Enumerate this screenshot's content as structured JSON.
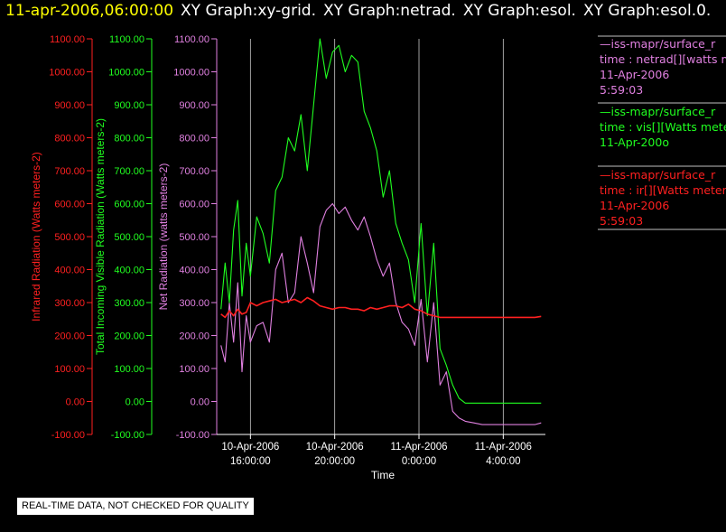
{
  "header": {
    "timestamp": "11-apr-2006,06:00:00",
    "graph_labels": [
      "XY Graph:xy-grid.",
      "XY Graph:netrad.",
      "XY Graph:esol.",
      "XY Graph:esol.0."
    ]
  },
  "disclaimer": "REAL-TIME DATA, NOT CHECKED FOR QUALITY",
  "colors": {
    "infrared": "#ff2020",
    "visible": "#20ff20",
    "net": "#e080e0",
    "grid": "#c8c8c8"
  },
  "chart_data": {
    "type": "line",
    "xlabel": "Time",
    "x_ticks": [
      {
        "hours": 16,
        "line1": "10-Apr-2006",
        "line2": "16:00:00"
      },
      {
        "hours": 20,
        "line1": "10-Apr-2006",
        "line2": "20:00:00"
      },
      {
        "hours": 24,
        "line1": "11-Apr-2006",
        "line2": "0:00:00"
      },
      {
        "hours": 28,
        "line1": "11-Apr-2006",
        "line2": "4:00:00"
      }
    ],
    "xlim_hours": [
      14.4,
      30.0
    ],
    "axes": [
      {
        "key": "infrared",
        "label": "Infrared Radiation (Watts meters-2)",
        "color": "#ff2020",
        "ylim": [
          -100,
          1100
        ],
        "ticks": [
          "1100.00",
          "1000.00",
          "900.00",
          "800.00",
          "700.00",
          "600.00",
          "500.00",
          "400.00",
          "300.00",
          "200.00",
          "100.00",
          "0.00",
          "-100.00"
        ]
      },
      {
        "key": "visible",
        "label": "Total Incoming Visible Radiation (Watts meters-2)",
        "color": "#20ff20",
        "ylim": [
          -100,
          1100
        ],
        "ticks": [
          "1100.00",
          "1000.00",
          "900.00",
          "800.00",
          "700.00",
          "600.00",
          "500.00",
          "400.00",
          "300.00",
          "200.00",
          "100.00",
          "0.00",
          "-100.00"
        ]
      },
      {
        "key": "net",
        "label": "Net Radiation (watts meters-2)",
        "color": "#e080e0",
        "ylim": [
          -100,
          1100
        ],
        "ticks": [
          "1100.00",
          "1000.00",
          "900.00",
          "800.00",
          "700.00",
          "600.00",
          "500.00",
          "400.00",
          "300.00",
          "200.00",
          "100.00",
          "0.00",
          "-100.00"
        ]
      }
    ],
    "series": [
      {
        "key": "net",
        "color": "#e080e0",
        "x": [
          14.6,
          14.8,
          15.0,
          15.2,
          15.4,
          15.6,
          15.8,
          16.0,
          16.3,
          16.6,
          16.9,
          17.2,
          17.5,
          17.8,
          18.1,
          18.4,
          18.7,
          19.0,
          19.3,
          19.6,
          19.9,
          20.2,
          20.5,
          20.8,
          21.1,
          21.4,
          21.7,
          22.0,
          22.3,
          22.6,
          22.9,
          23.2,
          23.5,
          23.8,
          24.1,
          24.4,
          24.7,
          25.0,
          25.3,
          25.6,
          25.9,
          26.2,
          26.6,
          27.0,
          27.5,
          28.0,
          28.5,
          29.0,
          29.5,
          29.8
        ],
        "y": [
          170,
          120,
          300,
          180,
          360,
          90,
          260,
          180,
          230,
          240,
          180,
          400,
          450,
          300,
          330,
          500,
          420,
          330,
          530,
          580,
          600,
          570,
          590,
          550,
          520,
          560,
          500,
          430,
          380,
          420,
          300,
          240,
          220,
          170,
          310,
          120,
          300,
          50,
          90,
          -30,
          -50,
          -60,
          -65,
          -70,
          -70,
          -70,
          -70,
          -70,
          -70,
          -65
        ]
      },
      {
        "key": "visible",
        "color": "#20ff20",
        "x": [
          14.6,
          14.8,
          15.0,
          15.2,
          15.4,
          15.6,
          15.8,
          16.0,
          16.3,
          16.6,
          16.9,
          17.2,
          17.5,
          17.8,
          18.1,
          18.4,
          18.7,
          19.0,
          19.3,
          19.6,
          19.9,
          20.2,
          20.5,
          20.8,
          21.1,
          21.4,
          21.7,
          22.0,
          22.3,
          22.6,
          22.9,
          23.2,
          23.5,
          23.8,
          24.1,
          24.4,
          24.7,
          25.0,
          25.3,
          25.6,
          25.9,
          26.2,
          26.6,
          27.0,
          27.5,
          28.0,
          28.5,
          29.0,
          29.5,
          29.8
        ],
        "y": [
          280,
          420,
          300,
          520,
          610,
          320,
          480,
          380,
          560,
          510,
          420,
          640,
          680,
          800,
          760,
          870,
          700,
          900,
          1100,
          980,
          1060,
          1080,
          1000,
          1050,
          1030,
          880,
          830,
          760,
          620,
          700,
          540,
          480,
          430,
          300,
          540,
          260,
          480,
          160,
          110,
          50,
          10,
          -5,
          -5,
          -5,
          -5,
          -5,
          -5,
          -5,
          -5,
          -5
        ]
      },
      {
        "key": "infrared",
        "color": "#ff2020",
        "x": [
          14.6,
          14.8,
          15.0,
          15.2,
          15.4,
          15.6,
          15.8,
          16.0,
          16.3,
          16.6,
          16.9,
          17.2,
          17.5,
          17.8,
          18.1,
          18.4,
          18.7,
          19.0,
          19.3,
          19.6,
          19.9,
          20.2,
          20.5,
          20.8,
          21.1,
          21.4,
          21.7,
          22.0,
          22.3,
          22.6,
          22.9,
          23.2,
          23.5,
          23.8,
          24.1,
          24.4,
          24.7,
          25.0,
          25.3,
          25.6,
          25.9,
          26.2,
          26.6,
          27.0,
          27.5,
          28.0,
          28.5,
          29.0,
          29.5,
          29.8
        ],
        "y": [
          265,
          255,
          275,
          260,
          280,
          265,
          270,
          300,
          290,
          300,
          305,
          310,
          300,
          305,
          310,
          300,
          315,
          305,
          290,
          285,
          280,
          285,
          285,
          280,
          280,
          275,
          285,
          280,
          285,
          290,
          290,
          285,
          295,
          280,
          275,
          265,
          260,
          255,
          255,
          255,
          255,
          255,
          255,
          255,
          255,
          255,
          255,
          255,
          255,
          258
        ]
      }
    ]
  },
  "legend": [
    {
      "color": "#e080e0",
      "lines": [
        "—iss-mapr/surface_r",
        "time : netrad[][watts m",
        "11-Apr-2006",
        "5:59:03"
      ]
    },
    {
      "color": "#20ff20",
      "lines": [
        "—iss-mapr/surface_r",
        "time : vis[][Watts mete",
        "11-Apr-200o"
      ]
    },
    {
      "color": "#ff2020",
      "lines": [
        "—iss-mapr/surface_r",
        "time : ir[][Watts meters",
        "11-Apr-2006",
        "5:59:03"
      ]
    }
  ]
}
